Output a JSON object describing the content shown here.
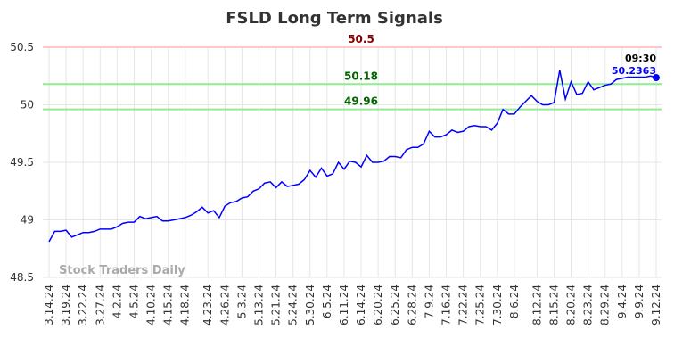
{
  "chart_data": {
    "type": "line",
    "title": "FSLD Long Term Signals",
    "categories": [
      "3.14.24",
      null,
      null,
      "3.19.24",
      null,
      null,
      "3.22.24",
      null,
      null,
      "3.27.24",
      null,
      null,
      "4.2.24",
      null,
      null,
      "4.5.24",
      null,
      null,
      "4.10.24",
      null,
      null,
      "4.15.24",
      null,
      null,
      "4.18.24",
      null,
      null,
      null,
      "4.23.24",
      null,
      null,
      "4.26.24",
      null,
      null,
      "5.3.24",
      null,
      null,
      "5.13.24",
      null,
      null,
      "5.21.24",
      null,
      null,
      "5.24.24",
      null,
      null,
      "5.30.24",
      null,
      null,
      "6.5.24",
      null,
      null,
      "6.11.24",
      null,
      null,
      "6.14.24",
      null,
      null,
      "6.20.24",
      null,
      null,
      "6.25.24",
      null,
      null,
      "6.28.24",
      null,
      null,
      "7.9.24",
      null,
      null,
      "7.16.24",
      null,
      null,
      "7.22.24",
      null,
      null,
      "7.25.24",
      null,
      null,
      "7.30.24",
      null,
      null,
      "8.6.24",
      null,
      null,
      null,
      "8.12.24",
      null,
      null,
      "8.15.24",
      null,
      null,
      "8.20.24",
      null,
      null,
      "8.23.24",
      null,
      null,
      "8.29.24",
      null,
      null,
      "9.4.24",
      null,
      null,
      "9.9.24",
      null,
      null,
      "9.12.24"
    ],
    "series": [
      {
        "name": "FSLD",
        "color": "#0000ff",
        "values": [
          48.81,
          48.9,
          48.9,
          48.91,
          48.85,
          48.87,
          48.89,
          48.89,
          48.9,
          48.92,
          48.92,
          48.92,
          48.94,
          48.97,
          48.98,
          48.98,
          49.03,
          49.01,
          49.02,
          49.03,
          48.99,
          48.99,
          49.0,
          49.01,
          49.02,
          49.04,
          49.07,
          49.11,
          49.06,
          49.08,
          49.02,
          49.12,
          49.15,
          49.16,
          49.19,
          49.2,
          49.25,
          49.27,
          49.32,
          49.33,
          49.28,
          49.33,
          49.29,
          49.3,
          49.31,
          49.35,
          49.43,
          49.37,
          49.45,
          49.38,
          49.4,
          49.5,
          49.44,
          49.51,
          49.5,
          49.46,
          49.56,
          49.5,
          49.5,
          49.51,
          49.55,
          49.55,
          49.54,
          49.61,
          49.63,
          49.63,
          49.66,
          49.77,
          49.72,
          49.72,
          49.74,
          49.78,
          49.76,
          49.77,
          49.81,
          49.82,
          49.81,
          49.81,
          49.78,
          49.84,
          49.96,
          49.92,
          49.92,
          49.98,
          50.03,
          50.08,
          50.03,
          50.0,
          50.0,
          50.02,
          50.3,
          50.05,
          50.2,
          50.09,
          50.1,
          50.2,
          50.13,
          50.15,
          50.17,
          50.18,
          50.22,
          50.23,
          50.24,
          50.24,
          50.24,
          50.24,
          50.25,
          50.2363
        ]
      }
    ],
    "hlines": [
      {
        "value": 50.5,
        "color": "#ffc8c8",
        "label_color": "#8b0000"
      },
      {
        "value": 50.18,
        "color": "#90ee90",
        "label_color": "#006400"
      },
      {
        "value": 49.96,
        "color": "#90ee90",
        "label_color": "#006400"
      }
    ],
    "last_label": "09:30",
    "watermark": "Stock Traders Daily",
    "ylim": [
      48.5,
      50.5
    ],
    "yticks": [
      48.5,
      49,
      49.5,
      50,
      50.5
    ],
    "grid": true
  }
}
